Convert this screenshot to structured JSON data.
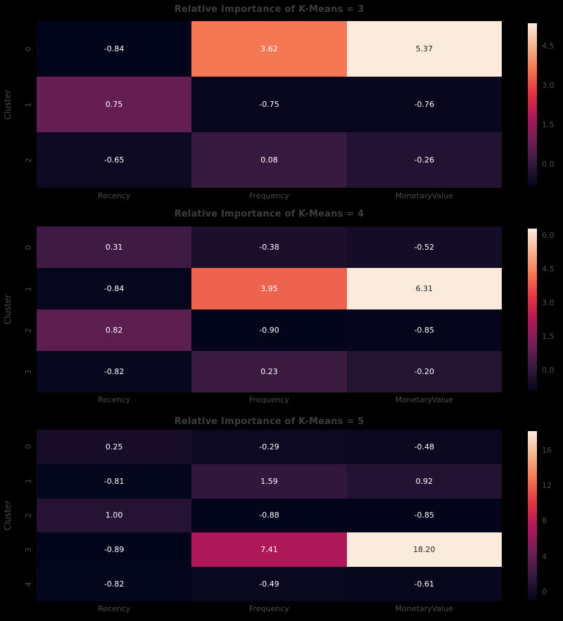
{
  "figure": {
    "background": "#000000",
    "title_color": "#3d3d3d",
    "tick_color": "#4c4c4c",
    "annot_dark": "#262626",
    "annot_light": "#ffffff"
  },
  "colormap": {
    "name": "rocket",
    "anchors": [
      {
        "t": 0.0,
        "hex": "#03051A"
      },
      {
        "t": 0.143,
        "hex": "#35193E"
      },
      {
        "t": 0.286,
        "hex": "#701F57"
      },
      {
        "t": 0.429,
        "hex": "#AD1759"
      },
      {
        "t": 0.571,
        "hex": "#E13342"
      },
      {
        "t": 0.714,
        "hex": "#F37651"
      },
      {
        "t": 0.857,
        "hex": "#F6B48F"
      },
      {
        "t": 1.0,
        "hex": "#FAEBDD"
      }
    ]
  },
  "chart_data": [
    {
      "type": "heatmap",
      "title": "Relative Importance of K-Means = 3",
      "ylabel": "Cluster",
      "columns": [
        "Recency",
        "Frequency",
        "MonetaryValue"
      ],
      "rows": [
        "0",
        "1",
        "2"
      ],
      "values": [
        [
          -0.84,
          3.62,
          5.37
        ],
        [
          0.75,
          -0.75,
          -0.76
        ],
        [
          -0.65,
          0.08,
          -0.26
        ]
      ],
      "vmin": -0.84,
      "vmax": 5.37,
      "colorbar_ticks": [
        {
          "value": 4.5,
          "label": "4.5"
        },
        {
          "value": 3.0,
          "label": "3.0"
        },
        {
          "value": 1.5,
          "label": "1.5"
        },
        {
          "value": 0.0,
          "label": "0.0"
        }
      ],
      "legend_position": "right-colorbar",
      "grid": false
    },
    {
      "type": "heatmap",
      "title": "Relative Importance of K-Means = 4",
      "ylabel": "Cluster",
      "columns": [
        "Recency",
        "Frequency",
        "MonetaryValue"
      ],
      "rows": [
        "0",
        "1",
        "2",
        "3"
      ],
      "values": [
        [
          0.31,
          -0.38,
          -0.52
        ],
        [
          -0.84,
          3.95,
          6.31
        ],
        [
          0.82,
          -0.9,
          -0.85
        ],
        [
          -0.82,
          0.23,
          -0.2
        ]
      ],
      "vmin": -0.9,
      "vmax": 6.31,
      "colorbar_ticks": [
        {
          "value": 6.0,
          "label": "6.0"
        },
        {
          "value": 4.5,
          "label": "4.5"
        },
        {
          "value": 3.0,
          "label": "3.0"
        },
        {
          "value": 1.5,
          "label": "1.5"
        },
        {
          "value": 0.0,
          "label": "0.0"
        }
      ],
      "legend_position": "right-colorbar",
      "grid": false
    },
    {
      "type": "heatmap",
      "title": "Relative Importance of K-Means = 5",
      "ylabel": "Cluster",
      "columns": [
        "Recency",
        "Frequency",
        "MonetaryValue"
      ],
      "rows": [
        "0",
        "1",
        "2",
        "3",
        "4"
      ],
      "values": [
        [
          0.25,
          -0.29,
          -0.48
        ],
        [
          -0.81,
          1.59,
          0.92
        ],
        [
          1.0,
          -0.88,
          -0.85
        ],
        [
          -0.89,
          7.41,
          18.2
        ],
        [
          -0.82,
          -0.49,
          -0.61
        ]
      ],
      "vmin": -0.89,
      "vmax": 18.2,
      "colorbar_ticks": [
        {
          "value": 16,
          "label": "16"
        },
        {
          "value": 12,
          "label": "12"
        },
        {
          "value": 8,
          "label": "8"
        },
        {
          "value": 4,
          "label": "4"
        },
        {
          "value": 0,
          "label": "0"
        }
      ],
      "legend_position": "right-colorbar",
      "grid": false
    }
  ]
}
